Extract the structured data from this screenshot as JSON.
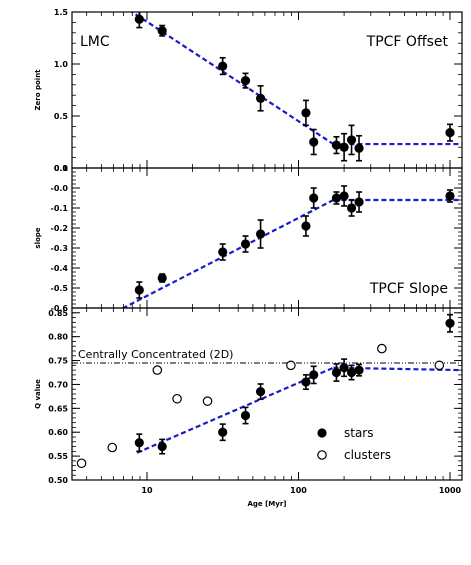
{
  "chart_data": {
    "type": "scatter",
    "x_label": "Age [Myr]",
    "x_scale": "log",
    "x_range": [
      3.2,
      1200
    ],
    "x_ticks": [
      {
        "value": 10,
        "label": "10"
      },
      {
        "value": 100,
        "label": "100"
      },
      {
        "value": 1000,
        "label": "1000"
      }
    ],
    "panels": [
      {
        "id": "offset",
        "corner_label": "LMC",
        "title": "TPCF Offset",
        "y_label": "Zero point",
        "y_range": [
          0.0,
          1.5
        ],
        "y_ticks": [
          {
            "value": 0.0,
            "label": "0.0"
          },
          {
            "value": 0.5,
            "label": "0.5"
          },
          {
            "value": 1.0,
            "label": "1.0"
          },
          {
            "value": 1.5,
            "label": "1.5"
          }
        ],
        "series": [
          {
            "marker": "filled-circle",
            "points": [
              {
                "x": 8.9,
                "y": 1.43,
                "err": 0.08
              },
              {
                "x": 12.6,
                "y": 1.32,
                "err": 0.05
              },
              {
                "x": 31.6,
                "y": 0.98,
                "err": 0.08
              },
              {
                "x": 44.7,
                "y": 0.84,
                "err": 0.07
              },
              {
                "x": 56.2,
                "y": 0.67,
                "err": 0.12
              },
              {
                "x": 112,
                "y": 0.53,
                "err": 0.12
              },
              {
                "x": 126,
                "y": 0.25,
                "err": 0.12
              },
              {
                "x": 178,
                "y": 0.22,
                "err": 0.08
              },
              {
                "x": 200,
                "y": 0.2,
                "err": 0.13
              },
              {
                "x": 224,
                "y": 0.27,
                "err": 0.14
              },
              {
                "x": 251,
                "y": 0.19,
                "err": 0.12
              },
              {
                "x": 1000,
                "y": 0.34,
                "err": 0.08
              }
            ]
          }
        ],
        "fit_lines": [
          {
            "x": [
              7.6,
              170
            ],
            "y": [
              1.52,
              0.23
            ]
          },
          {
            "x": [
              170,
              1200
            ],
            "y": [
              0.23,
              0.23
            ]
          }
        ]
      },
      {
        "id": "slope",
        "title": "TPCF Slope",
        "y_label": "slope",
        "y_range": [
          -0.6,
          0.1
        ],
        "y_ticks": [
          {
            "value": 0.1,
            "label": "0.1"
          },
          {
            "value": 0.0,
            "label": "-0.0"
          },
          {
            "value": -0.1,
            "label": "-0.1"
          },
          {
            "value": -0.2,
            "label": "-0.2"
          },
          {
            "value": -0.3,
            "label": "-0.3"
          },
          {
            "value": -0.4,
            "label": "-0.4"
          },
          {
            "value": -0.5,
            "label": "-0.5"
          },
          {
            "value": -0.6,
            "label": "-0.6"
          }
        ],
        "series": [
          {
            "marker": "filled-circle",
            "points": [
              {
                "x": 8.9,
                "y": -0.51,
                "err": 0.04
              },
              {
                "x": 12.6,
                "y": -0.45,
                "err": 0.02
              },
              {
                "x": 31.6,
                "y": -0.32,
                "err": 0.04
              },
              {
                "x": 44.7,
                "y": -0.28,
                "err": 0.04
              },
              {
                "x": 56.2,
                "y": -0.23,
                "err": 0.07
              },
              {
                "x": 112,
                "y": -0.19,
                "err": 0.05
              },
              {
                "x": 126,
                "y": -0.05,
                "err": 0.05
              },
              {
                "x": 178,
                "y": -0.05,
                "err": 0.03
              },
              {
                "x": 200,
                "y": -0.04,
                "err": 0.05
              },
              {
                "x": 224,
                "y": -0.1,
                "err": 0.04
              },
              {
                "x": 251,
                "y": -0.07,
                "err": 0.05
              },
              {
                "x": 1000,
                "y": -0.04,
                "err": 0.03
              }
            ]
          }
        ],
        "fit_lines": [
          {
            "x": [
              6.2,
              170
            ],
            "y": [
              -0.62,
              -0.06
            ]
          },
          {
            "x": [
              170,
              1200
            ],
            "y": [
              -0.06,
              -0.06
            ]
          }
        ]
      },
      {
        "id": "q",
        "y_label": "Q value",
        "y_range": [
          0.5,
          0.86
        ],
        "y_ticks": [
          {
            "value": 0.5,
            "label": "0.50"
          },
          {
            "value": 0.55,
            "label": "0.55"
          },
          {
            "value": 0.6,
            "label": "0.60"
          },
          {
            "value": 0.65,
            "label": "0.65"
          },
          {
            "value": 0.7,
            "label": "0.70"
          },
          {
            "value": 0.75,
            "label": "0.75"
          },
          {
            "value": 0.8,
            "label": "0.80"
          },
          {
            "value": 0.85,
            "label": "0.85"
          }
        ],
        "reference_line": {
          "y": 0.745,
          "label": "Centrally Concentrated (2D)"
        },
        "series": [
          {
            "name": "stars",
            "marker": "filled-circle",
            "points": [
              {
                "x": 8.9,
                "y": 0.578,
                "err": 0.018
              },
              {
                "x": 12.6,
                "y": 0.57,
                "err": 0.015
              },
              {
                "x": 31.6,
                "y": 0.6,
                "err": 0.017
              },
              {
                "x": 44.7,
                "y": 0.635,
                "err": 0.017
              },
              {
                "x": 56.2,
                "y": 0.685,
                "err": 0.016
              },
              {
                "x": 112,
                "y": 0.705,
                "err": 0.015
              },
              {
                "x": 126,
                "y": 0.72,
                "err": 0.018
              },
              {
                "x": 178,
                "y": 0.725,
                "err": 0.018
              },
              {
                "x": 200,
                "y": 0.735,
                "err": 0.018
              },
              {
                "x": 224,
                "y": 0.725,
                "err": 0.015
              },
              {
                "x": 251,
                "y": 0.73,
                "err": 0.012
              },
              {
                "x": 1000,
                "y": 0.828,
                "err": 0.018
              }
            ]
          },
          {
            "name": "clusters",
            "marker": "open-circle",
            "points": [
              {
                "x": 3.7,
                "y": 0.535
              },
              {
                "x": 5.9,
                "y": 0.568
              },
              {
                "x": 11.7,
                "y": 0.73
              },
              {
                "x": 15.8,
                "y": 0.67
              },
              {
                "x": 25.1,
                "y": 0.665
              },
              {
                "x": 89.1,
                "y": 0.74
              },
              {
                "x": 355,
                "y": 0.775
              },
              {
                "x": 850,
                "y": 0.74
              }
            ]
          }
        ],
        "fit_lines": [
          {
            "x": [
              8.6,
              170
            ],
            "y": [
              0.557,
              0.735
            ]
          },
          {
            "x": [
              170,
              1200
            ],
            "y": [
              0.735,
              0.73
            ]
          }
        ],
        "legend": {
          "position": "bottom-right"
        }
      }
    ]
  },
  "colors": {
    "markers": "#000000",
    "fit_line": "#1a1ac8",
    "reference_line": "#000000"
  }
}
